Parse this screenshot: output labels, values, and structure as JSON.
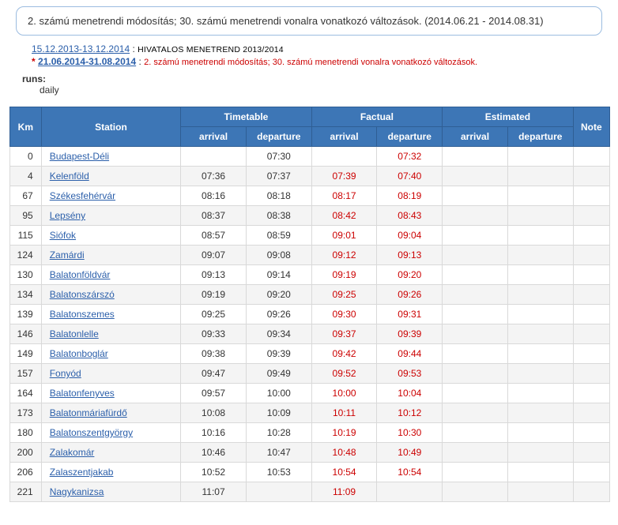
{
  "notice": "2. számú menetrendi módosítás; 30. számú menetrendi vonalra vonatkozó változások. (2014.06.21 - 2014.08.31)",
  "periods": [
    {
      "star": "",
      "link": "15.12.2013-13.12.2014",
      "bold": false,
      "desc": "HIVATALOS MENETREND 2013/2014",
      "descRed": false
    },
    {
      "star": "*",
      "link": "21.06.2014-31.08.2014",
      "bold": true,
      "desc": "2. számú menetrendi módosítás; 30. számú menetrendi vonalra vonatkozó változások.",
      "descRed": true
    }
  ],
  "runs": {
    "label": "runs:",
    "value": "daily"
  },
  "headers": {
    "km": "Km",
    "station": "Station",
    "timetable": "Timetable",
    "factual": "Factual",
    "estimated": "Estimated",
    "note": "Note",
    "arrival": "arrival",
    "departure": "departure"
  },
  "rows": [
    {
      "km": "0",
      "station": "Budapest-Déli",
      "tArr": "",
      "tDep": "07:30",
      "fArr": "",
      "fDep": "07:32"
    },
    {
      "km": "4",
      "station": "Kelenföld",
      "tArr": "07:36",
      "tDep": "07:37",
      "fArr": "07:39",
      "fDep": "07:40"
    },
    {
      "km": "67",
      "station": "Székesfehérvár",
      "tArr": "08:16",
      "tDep": "08:18",
      "fArr": "08:17",
      "fDep": "08:19"
    },
    {
      "km": "95",
      "station": "Lepsény",
      "tArr": "08:37",
      "tDep": "08:38",
      "fArr": "08:42",
      "fDep": "08:43"
    },
    {
      "km": "115",
      "station": "Siófok",
      "tArr": "08:57",
      "tDep": "08:59",
      "fArr": "09:01",
      "fDep": "09:04"
    },
    {
      "km": "124",
      "station": "Zamárdi",
      "tArr": "09:07",
      "tDep": "09:08",
      "fArr": "09:12",
      "fDep": "09:13"
    },
    {
      "km": "130",
      "station": "Balatonföldvár",
      "tArr": "09:13",
      "tDep": "09:14",
      "fArr": "09:19",
      "fDep": "09:20"
    },
    {
      "km": "134",
      "station": "Balatonszárszó",
      "tArr": "09:19",
      "tDep": "09:20",
      "fArr": "09:25",
      "fDep": "09:26"
    },
    {
      "km": "139",
      "station": "Balatonszemes",
      "tArr": "09:25",
      "tDep": "09:26",
      "fArr": "09:30",
      "fDep": "09:31"
    },
    {
      "km": "146",
      "station": "Balatonlelle",
      "tArr": "09:33",
      "tDep": "09:34",
      "fArr": "09:37",
      "fDep": "09:39"
    },
    {
      "km": "149",
      "station": "Balatonboglár",
      "tArr": "09:38",
      "tDep": "09:39",
      "fArr": "09:42",
      "fDep": "09:44"
    },
    {
      "km": "157",
      "station": "Fonyód",
      "tArr": "09:47",
      "tDep": "09:49",
      "fArr": "09:52",
      "fDep": "09:53"
    },
    {
      "km": "164",
      "station": "Balatonfenyves",
      "tArr": "09:57",
      "tDep": "10:00",
      "fArr": "10:00",
      "fDep": "10:04"
    },
    {
      "km": "173",
      "station": "Balatonmáriafürdő",
      "tArr": "10:08",
      "tDep": "10:09",
      "fArr": "10:11",
      "fDep": "10:12"
    },
    {
      "km": "180",
      "station": "Balatonszentgyörgy",
      "tArr": "10:16",
      "tDep": "10:28",
      "fArr": "10:19",
      "fDep": "10:30"
    },
    {
      "km": "200",
      "station": "Zalakomár",
      "tArr": "10:46",
      "tDep": "10:47",
      "fArr": "10:48",
      "fDep": "10:49"
    },
    {
      "km": "206",
      "station": "Zalaszentjakab",
      "tArr": "10:52",
      "tDep": "10:53",
      "fArr": "10:54",
      "fDep": "10:54"
    },
    {
      "km": "221",
      "station": "Nagykanizsa",
      "tArr": "11:07",
      "tDep": "",
      "fArr": "11:09",
      "fDep": ""
    }
  ],
  "style": {
    "headerBg": "#3d76b6",
    "headerText": "#ffffff",
    "rowAlt": "#f4f4f4",
    "rowBase": "#ffffff",
    "linkColor": "#2b5faa",
    "factColor": "#cc0000",
    "borderColor": "#d9d9d9",
    "noticeBorder": "#9bbce0",
    "fontSize": 12
  }
}
